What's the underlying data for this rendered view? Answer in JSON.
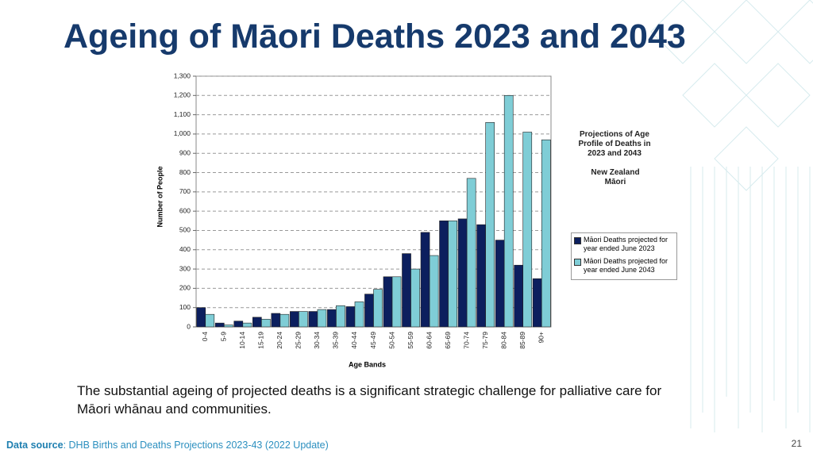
{
  "slide": {
    "title": "Ageing of Māori Deaths 2023 and 2043",
    "caption": "The substantial ageing of projected deaths is a significant strategic challenge for palliative care for Māori whānau and communities.",
    "source_label": "Data source",
    "source_text": ": DHB Births and Deaths Projections 2023-43 (2022 Update)",
    "page_number": "21"
  },
  "chart_data": {
    "type": "bar",
    "x_label": "Age Bands",
    "y_label": "Number of People",
    "annotations": [
      "Projections of Age Profile of Deaths in 2023 and 2043",
      "New Zealand Māori"
    ],
    "categories": [
      "0-4",
      "5-9",
      "10-14",
      "15-19",
      "20-24",
      "25-29",
      "30-34",
      "35-39",
      "40-44",
      "45-49",
      "50-54",
      "55-59",
      "60-64",
      "65-69",
      "70-74",
      "75-79",
      "80-84",
      "85-89",
      "90+"
    ],
    "series": [
      {
        "name": "Māori Deaths projected for year ended June 2023",
        "color": "#0c1f5e",
        "values": [
          100,
          20,
          30,
          50,
          70,
          80,
          80,
          90,
          105,
          170,
          260,
          380,
          490,
          550,
          560,
          530,
          450,
          320,
          250
        ]
      },
      {
        "name": "Māori Deaths projected for year ended June 2043",
        "color": "#7fcdd6",
        "values": [
          65,
          10,
          20,
          40,
          65,
          80,
          90,
          110,
          130,
          195,
          260,
          300,
          370,
          550,
          770,
          1060,
          1200,
          1010,
          970
        ]
      }
    ],
    "ylim": [
      0,
      1300
    ],
    "yticks": [
      0,
      100,
      200,
      300,
      400,
      500,
      600,
      700,
      800,
      900,
      {
        "value": 1000,
        "label": "1,000"
      },
      {
        "value": 1100,
        "label": "1,100"
      },
      {
        "value": 1200,
        "label": "1,200"
      },
      {
        "value": 1300,
        "label": "1,300"
      }
    ],
    "grid": true
  }
}
